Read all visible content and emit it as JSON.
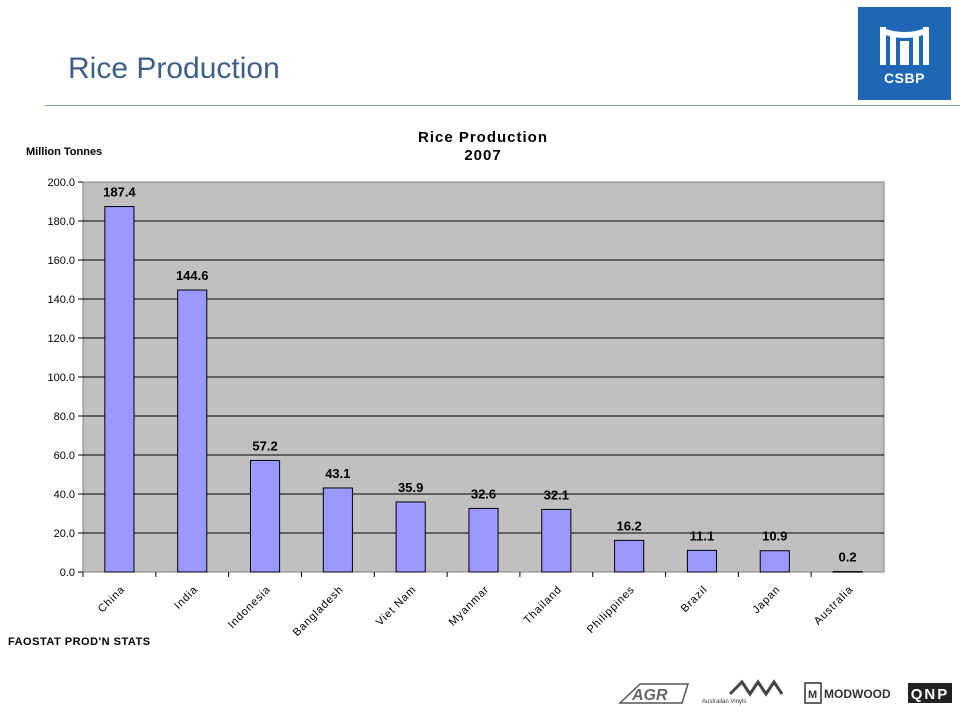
{
  "slide": {
    "title": "Rice Production",
    "source_note": "FAOSTAT PROD'N STATS",
    "logo_text": "CSBP"
  },
  "footer_logos": {
    "agr": "AGR",
    "australian_vinyls": "Australian Vinyls",
    "modwood": "MODWOOD",
    "qnp": "QNP"
  },
  "colors": {
    "title": "#3f5f86",
    "logo_bg": "#1f66b4",
    "plot_bg": "#c0c0c0",
    "bar_fill": "#9999ff"
  },
  "chart_data": {
    "type": "bar",
    "title": "Rice Production",
    "subtitle": "2007",
    "ylabel": "Million Tonnes",
    "xlabel": "",
    "categories": [
      "China",
      "India",
      "Indonesia",
      "Bangladesh",
      "Viet Nam",
      "Myanmar",
      "Thailand",
      "Philippines",
      "Brazil",
      "Japan",
      "Australia"
    ],
    "values": [
      187.4,
      144.6,
      57.2,
      43.1,
      35.9,
      32.6,
      32.1,
      16.2,
      11.1,
      10.9,
      0.2
    ],
    "data_labels": [
      "187.4",
      "144.6",
      "57.2",
      "43.1",
      "35.9",
      "32.6",
      "32.1",
      "16.2",
      "11.1",
      "10.9",
      "0.2"
    ],
    "ylim": [
      0,
      200
    ],
    "yticks": [
      "0.0",
      "20.0",
      "40.0",
      "60.0",
      "80.0",
      "100.0",
      "120.0",
      "140.0",
      "160.0",
      "180.0",
      "200.0"
    ],
    "grid": true,
    "legend": "none"
  }
}
